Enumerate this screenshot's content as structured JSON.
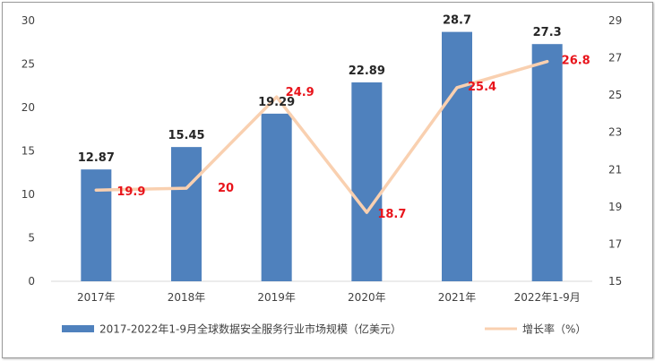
{
  "chart_data": {
    "type": "bar+line",
    "categories": [
      "2017年",
      "2018年",
      "2019年",
      "2020年",
      "2021年",
      "2022年1-9月"
    ],
    "series": [
      {
        "name": "2017-2022年1-9月全球数据安全服务行业市场规模（亿美元）",
        "type": "bar",
        "axis": "left",
        "values": [
          12.87,
          15.45,
          19.29,
          22.89,
          28.7,
          27.3
        ],
        "labels": [
          "12.87",
          "15.45",
          "19.29",
          "22.89",
          "28.7",
          "27.3"
        ],
        "color": "#4f81bd"
      },
      {
        "name": "增长率（%）",
        "type": "line",
        "axis": "right",
        "values": [
          19.9,
          20,
          24.9,
          18.7,
          25.4,
          26.8
        ],
        "labels": [
          "19.9",
          "20",
          "24.9",
          "18.7",
          "25.4",
          "26.8"
        ],
        "color": "#f9d0b0",
        "label_color": "#e8141b"
      }
    ],
    "y_left": {
      "ylim": [
        0,
        30
      ],
      "ticks": [
        "0",
        "5",
        "10",
        "15",
        "20",
        "25",
        "30"
      ]
    },
    "y_right": {
      "ylim": [
        15,
        29
      ],
      "ticks": [
        "15",
        "17",
        "19",
        "21",
        "23",
        "25",
        "27",
        "29"
      ]
    },
    "grid": false,
    "legend": "bottom"
  }
}
